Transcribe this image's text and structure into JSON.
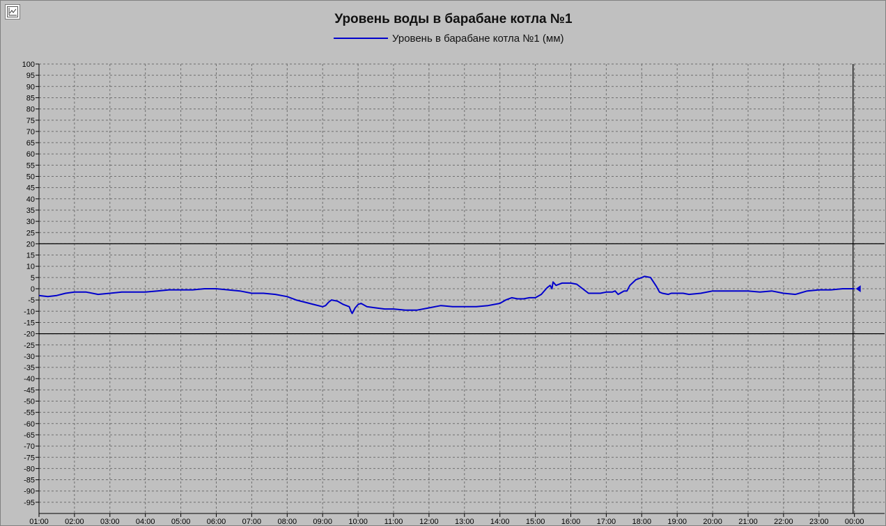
{
  "window": {
    "corner_icon": "chart-settings-icon"
  },
  "chart_data": {
    "type": "line",
    "title": "Уровень воды в барабане котла №1",
    "xlabel": "",
    "ylabel": "",
    "ylim": [
      -100,
      100
    ],
    "y_ticks": [
      100,
      95,
      90,
      85,
      80,
      75,
      70,
      65,
      60,
      55,
      50,
      45,
      40,
      35,
      30,
      25,
      20,
      15,
      10,
      5,
      0,
      -5,
      -10,
      -15,
      -20,
      -25,
      -30,
      -35,
      -40,
      -45,
      -50,
      -55,
      -60,
      -65,
      -70,
      -75,
      -80,
      -85,
      -90,
      -95
    ],
    "x_ticks": [
      "01:00",
      "02:00",
      "03:00",
      "04:00",
      "05:00",
      "06:00",
      "07:00",
      "08:00",
      "09:00",
      "10:00",
      "11:00",
      "12:00",
      "13:00",
      "14:00",
      "15:00",
      "16:00",
      "17:00",
      "18:00",
      "19:00",
      "20:00",
      "21:00",
      "22:00",
      "23:00",
      "00:00"
    ],
    "limits": [
      20,
      -20
    ],
    "current_time": "00:00",
    "grid": true,
    "legend_position": "top",
    "colors": {
      "series": "#0000cc",
      "limit": "#000000",
      "grid": "#6e6e6e",
      "background": "#c0c0c0"
    },
    "series": [
      {
        "name": "Уровень в барабане котла №1 (мм)",
        "x": [
          "01:00",
          "01:15",
          "01:30",
          "01:45",
          "02:00",
          "02:20",
          "02:40",
          "03:00",
          "03:20",
          "03:40",
          "04:00",
          "04:20",
          "04:40",
          "05:00",
          "05:20",
          "05:40",
          "06:00",
          "06:20",
          "06:40",
          "07:00",
          "07:20",
          "07:40",
          "08:00",
          "08:15",
          "08:30",
          "08:45",
          "09:00",
          "09:05",
          "09:10",
          "09:15",
          "09:25",
          "09:35",
          "09:45",
          "09:48",
          "09:50",
          "09:55",
          "10:00",
          "10:05",
          "10:15",
          "10:30",
          "10:45",
          "11:00",
          "11:20",
          "11:40",
          "12:00",
          "12:20",
          "12:40",
          "13:00",
          "13:20",
          "13:40",
          "14:00",
          "14:10",
          "14:20",
          "14:30",
          "14:40",
          "14:50",
          "15:00",
          "15:10",
          "15:20",
          "15:25",
          "15:28",
          "15:30",
          "15:35",
          "15:45",
          "16:00",
          "16:10",
          "16:20",
          "16:30",
          "16:40",
          "16:50",
          "17:00",
          "17:10",
          "17:15",
          "17:20",
          "17:30",
          "17:35",
          "17:40",
          "17:50",
          "18:00",
          "18:05",
          "18:15",
          "18:25",
          "18:30",
          "18:35",
          "18:45",
          "18:50",
          "19:00",
          "19:10",
          "19:20",
          "19:40",
          "20:00",
          "20:20",
          "20:40",
          "21:00",
          "21:20",
          "21:40",
          "22:00",
          "22:20",
          "22:40",
          "23:00",
          "23:20",
          "23:40",
          "00:00"
        ],
        "values": [
          -3,
          -3.5,
          -3,
          -2,
          -1.5,
          -1.5,
          -2.5,
          -2,
          -1.5,
          -1.5,
          -1.5,
          -1,
          -0.5,
          -0.5,
          -0.5,
          0,
          0,
          -0.5,
          -1,
          -2,
          -2,
          -2.5,
          -3.5,
          -5,
          -6,
          -7,
          -8,
          -7.5,
          -6,
          -5,
          -5.5,
          -7,
          -8,
          -10,
          -11,
          -8.5,
          -7,
          -6.5,
          -8,
          -8.5,
          -9,
          -9,
          -9.5,
          -9.5,
          -8.5,
          -7.5,
          -8,
          -8,
          -8,
          -7.5,
          -6.5,
          -5,
          -4,
          -4.5,
          -4.5,
          -4,
          -4,
          -2.5,
          0.5,
          1.5,
          0,
          3,
          1.5,
          2.5,
          2.5,
          2,
          0,
          -2,
          -2,
          -2,
          -1.5,
          -1.5,
          -1,
          -2.5,
          -1,
          -1,
          1.5,
          4,
          5,
          5.5,
          5,
          1,
          -1.5,
          -2,
          -2.5,
          -2,
          -2,
          -2,
          -2.5,
          -2,
          -1,
          -1,
          -1,
          -1,
          -1.5,
          -1,
          -2,
          -2.5,
          -1,
          -0.5,
          -0.5,
          0,
          0
        ]
      }
    ]
  }
}
